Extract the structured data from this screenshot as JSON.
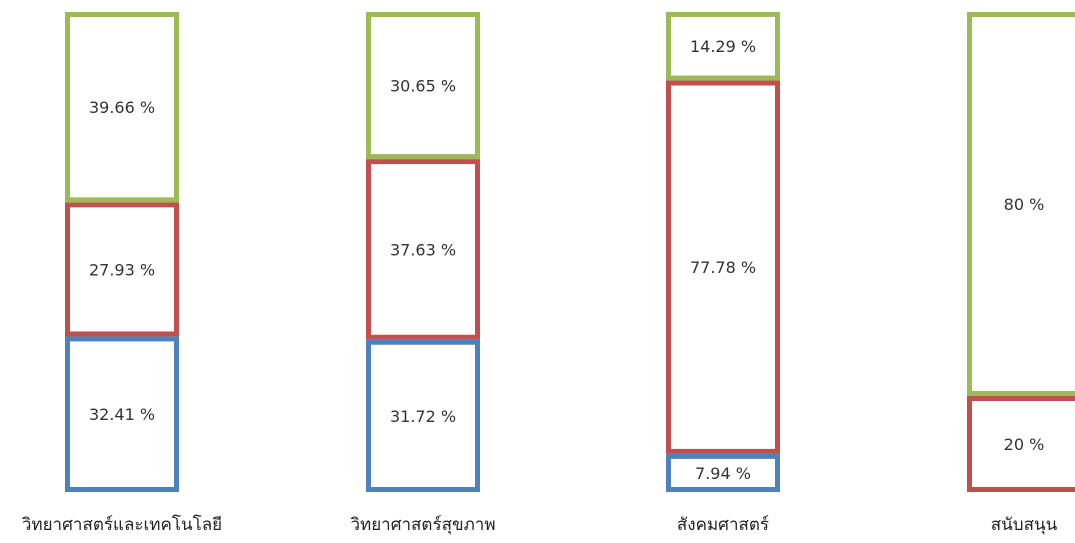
{
  "chart_data": {
    "type": "bar",
    "stacked": true,
    "orientation": "vertical",
    "categories": [
      "วิทยาศาสตร์และเทคโนโลยี",
      "วิทยาศาสตร์สุขภาพ",
      "สังคมศาสตร์",
      "สนับสนุน"
    ],
    "series": [
      {
        "color": "#4f81bd",
        "values": [
          32.41,
          31.72,
          7.94,
          0
        ]
      },
      {
        "color": "#c0504d",
        "values": [
          27.93,
          37.63,
          77.78,
          20
        ]
      },
      {
        "color": "#9bbb59",
        "values": [
          39.66,
          30.65,
          14.29,
          80
        ]
      }
    ],
    "segment_labels": [
      [
        "32.41 %",
        "27.93 %",
        "39.66 %"
      ],
      [
        "31.72 %",
        "37.63 %",
        "30.65 %"
      ],
      [
        "7.94 %",
        "77.78 %",
        "14.29 %"
      ],
      [
        "",
        "20 %",
        "80 %"
      ]
    ],
    "ylim": [
      0,
      100
    ],
    "grid": false,
    "legend": "none"
  }
}
